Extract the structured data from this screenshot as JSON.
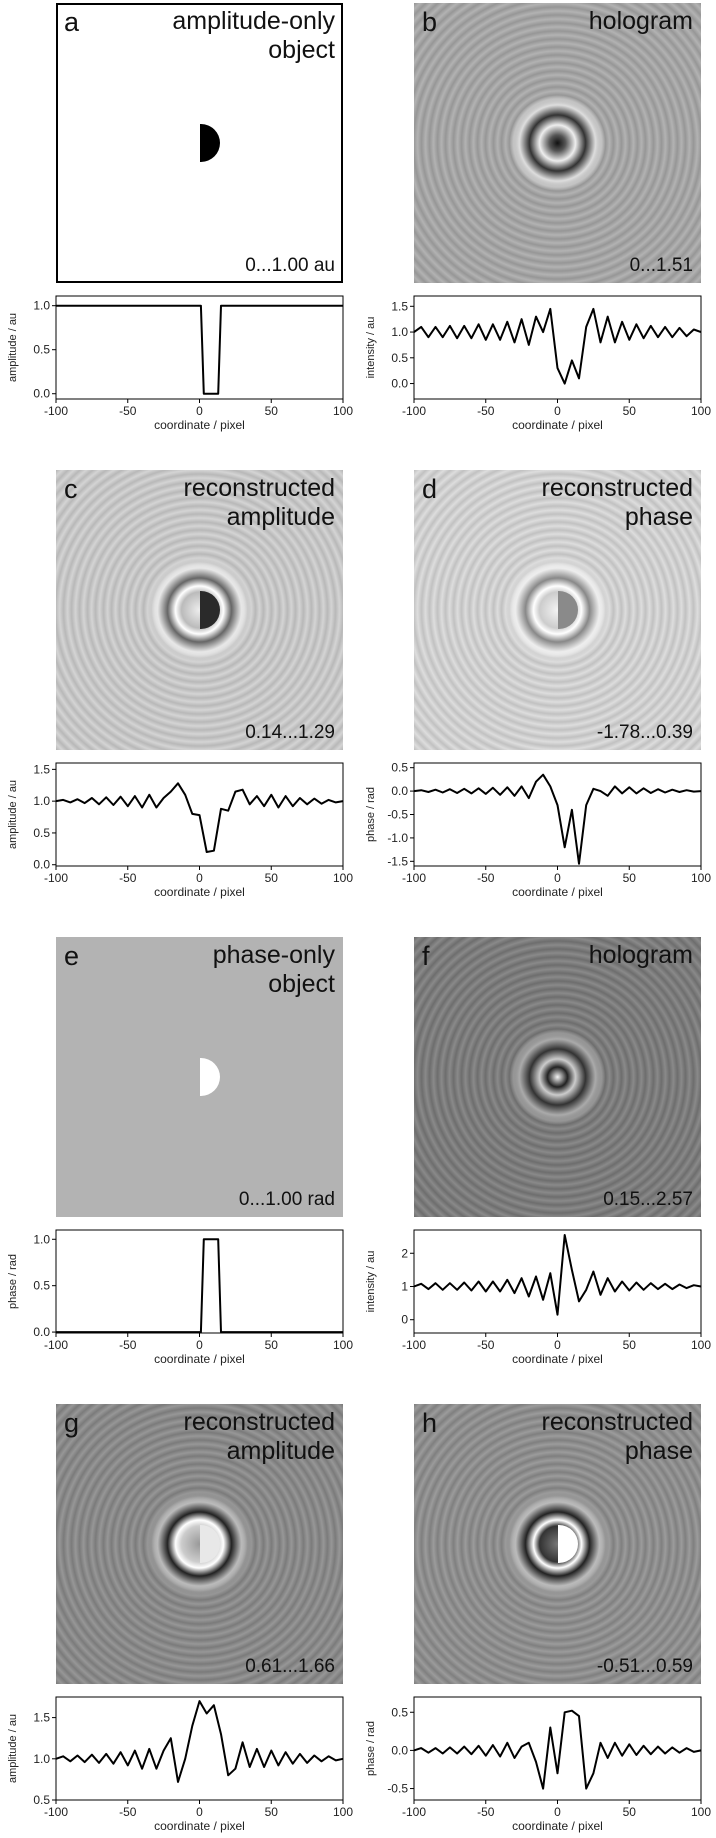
{
  "chart_data": [
    {
      "type": "line",
      "panel_label": "a",
      "title": [
        "amplitude-only",
        "object"
      ],
      "range_label": "0...1.00 au",
      "x": [
        -100,
        1,
        3,
        13,
        15,
        100
      ],
      "values": [
        1,
        1,
        0,
        0,
        1,
        1
      ],
      "color": "#000000",
      "xlim": [
        -100,
        100
      ],
      "xticks": [
        -100,
        -50,
        0,
        50,
        100
      ],
      "ylim": [
        -0.06,
        1.11
      ],
      "yticks": [
        {
          "value": 0,
          "label": "0.0"
        },
        0.5,
        {
          "value": 1,
          "label": "1.0"
        }
      ],
      "xlabel": "coordinate / pixel",
      "ylabel": "amplitude / au"
    },
    {
      "type": "line",
      "panel_label": "b",
      "title": [
        "hologram"
      ],
      "range_label": "0...1.51",
      "x": [
        -100,
        -95,
        -90,
        -85,
        -80,
        -75,
        -70,
        -65,
        -60,
        -55,
        -50,
        -45,
        -40,
        -35,
        -30,
        -25,
        -20,
        -15,
        -10,
        -5,
        0,
        5,
        10,
        15,
        20,
        25,
        30,
        35,
        40,
        45,
        50,
        55,
        60,
        65,
        70,
        75,
        80,
        85,
        90,
        95,
        100
      ],
      "values": [
        1.0,
        1.1,
        0.9,
        1.1,
        0.9,
        1.12,
        0.88,
        1.12,
        0.88,
        1.15,
        0.85,
        1.15,
        0.85,
        1.2,
        0.8,
        1.25,
        0.75,
        1.3,
        1.0,
        1.45,
        0.3,
        0.0,
        0.45,
        0.1,
        1.1,
        1.45,
        0.8,
        1.3,
        0.8,
        1.2,
        0.85,
        1.15,
        0.88,
        1.12,
        0.9,
        1.1,
        0.9,
        1.08,
        0.92,
        1.05,
        1.0
      ],
      "color": "#000000",
      "xlim": [
        -100,
        100
      ],
      "xticks": [
        -100,
        -50,
        0,
        50,
        100
      ],
      "ylim": [
        -0.3,
        1.7
      ],
      "yticks": [
        {
          "value": 0,
          "label": "0.0"
        },
        0.5,
        {
          "value": 1,
          "label": "1.0"
        },
        1.5
      ],
      "xlabel": "coordinate / pixel",
      "ylabel": "intensity / au"
    },
    {
      "type": "line",
      "panel_label": "c",
      "title": [
        "reconstructed",
        "amplitude"
      ],
      "range_label": "0.14...1.29",
      "x": [
        -100,
        -95,
        -90,
        -85,
        -80,
        -75,
        -70,
        -65,
        -60,
        -55,
        -50,
        -45,
        -40,
        -35,
        -30,
        -25,
        -20,
        -15,
        -10,
        -5,
        0,
        5,
        10,
        15,
        20,
        25,
        30,
        35,
        40,
        45,
        50,
        55,
        60,
        65,
        70,
        75,
        80,
        85,
        90,
        95,
        100
      ],
      "values": [
        1.0,
        1.02,
        0.98,
        1.03,
        0.97,
        1.05,
        0.95,
        1.06,
        0.94,
        1.07,
        0.92,
        1.08,
        0.9,
        1.1,
        0.9,
        1.05,
        1.15,
        1.28,
        1.1,
        0.8,
        0.78,
        0.2,
        0.22,
        0.88,
        0.85,
        1.15,
        1.18,
        0.95,
        1.08,
        0.92,
        1.1,
        0.9,
        1.08,
        0.92,
        1.05,
        0.95,
        1.04,
        0.96,
        1.02,
        0.98,
        1.0
      ],
      "color": "#000000",
      "xlim": [
        -100,
        100
      ],
      "xticks": [
        -100,
        -50,
        0,
        50,
        100
      ],
      "ylim": [
        -0.02,
        1.6
      ],
      "yticks": [
        {
          "value": 0,
          "label": "0.0"
        },
        0.5,
        {
          "value": 1,
          "label": "1.0"
        },
        1.5
      ],
      "xlabel": "coordinate / pixel",
      "ylabel": "amplitude / au"
    },
    {
      "type": "line",
      "panel_label": "d",
      "title": [
        "reconstructed",
        "phase"
      ],
      "range_label": "-1.78...0.39",
      "x": [
        -100,
        -95,
        -90,
        -85,
        -80,
        -75,
        -70,
        -65,
        -60,
        -55,
        -50,
        -45,
        -40,
        -35,
        -30,
        -25,
        -20,
        -15,
        -10,
        -5,
        0,
        5,
        10,
        15,
        20,
        25,
        30,
        35,
        40,
        45,
        50,
        55,
        60,
        65,
        70,
        75,
        80,
        85,
        90,
        95,
        100
      ],
      "values": [
        0,
        0.02,
        -0.02,
        0.03,
        -0.03,
        0.04,
        -0.04,
        0.05,
        -0.05,
        0.06,
        -0.06,
        0.07,
        -0.08,
        0.08,
        -0.1,
        0.1,
        -0.15,
        0.2,
        0.35,
        0.1,
        -0.3,
        -1.2,
        -0.4,
        -1.55,
        -0.3,
        0.05,
        0.0,
        -0.1,
        0.1,
        -0.05,
        0.08,
        -0.05,
        0.06,
        -0.04,
        0.04,
        -0.03,
        0.03,
        -0.02,
        0.02,
        -0.01,
        0
      ],
      "color": "#000000",
      "xlim": [
        -100,
        100
      ],
      "xticks": [
        -100,
        -50,
        0,
        50,
        100
      ],
      "ylim": [
        -1.6,
        0.6
      ],
      "yticks": [
        -1.5,
        {
          "value": -1,
          "label": "-1.0"
        },
        -0.5,
        {
          "value": 0,
          "label": "0.0"
        },
        0.5
      ],
      "xlabel": "coordinate / pixel",
      "ylabel": "phase / rad"
    },
    {
      "type": "line",
      "panel_label": "e",
      "title": [
        "phase-only",
        "object"
      ],
      "range_label": "0...1.00  rad",
      "x": [
        -100,
        1,
        3,
        13,
        15,
        100
      ],
      "values": [
        0,
        0,
        1,
        1,
        0,
        0
      ],
      "color": "#000000",
      "xlim": [
        -100,
        100
      ],
      "xticks": [
        -100,
        -50,
        0,
        50,
        100
      ],
      "ylim": [
        -0.01,
        1.1
      ],
      "yticks": [
        {
          "value": 0,
          "label": "0.0"
        },
        0.5,
        {
          "value": 1,
          "label": "1.0"
        }
      ],
      "xlabel": "coordinate / pixel",
      "ylabel": "phase / rad"
    },
    {
      "type": "line",
      "panel_label": "f",
      "title": [
        "hologram"
      ],
      "range_label": "0.15...2.57",
      "x": [
        -100,
        -95,
        -90,
        -85,
        -80,
        -75,
        -70,
        -65,
        -60,
        -55,
        -50,
        -45,
        -40,
        -35,
        -30,
        -25,
        -20,
        -15,
        -10,
        -5,
        0,
        5,
        10,
        15,
        20,
        25,
        30,
        35,
        40,
        45,
        50,
        55,
        60,
        65,
        70,
        75,
        80,
        85,
        90,
        95,
        100
      ],
      "values": [
        1,
        1.08,
        0.92,
        1.1,
        0.9,
        1.1,
        0.9,
        1.12,
        0.88,
        1.15,
        0.85,
        1.15,
        0.85,
        1.2,
        0.8,
        1.25,
        0.7,
        1.3,
        0.6,
        1.4,
        0.15,
        2.55,
        1.5,
        0.55,
        0.9,
        1.45,
        0.75,
        1.25,
        0.85,
        1.15,
        0.88,
        1.12,
        0.9,
        1.1,
        0.92,
        1.08,
        0.92,
        1.06,
        0.95,
        1.04,
        1
      ],
      "color": "#000000",
      "xlim": [
        -100,
        100
      ],
      "xticks": [
        -100,
        -50,
        0,
        50,
        100
      ],
      "ylim": [
        -0.4,
        2.7
      ],
      "yticks": [
        0,
        1,
        2
      ],
      "xlabel": "coordinate / pixel",
      "ylabel": "intensity / au"
    },
    {
      "type": "line",
      "panel_label": "g",
      "title": [
        "reconstructed",
        "amplitude"
      ],
      "range_label": "0.61...1.66",
      "x": [
        -100,
        -95,
        -90,
        -85,
        -80,
        -75,
        -70,
        -65,
        -60,
        -55,
        -50,
        -45,
        -40,
        -35,
        -30,
        -25,
        -20,
        -15,
        -10,
        -5,
        0,
        5,
        10,
        15,
        20,
        25,
        30,
        35,
        40,
        45,
        50,
        55,
        60,
        65,
        70,
        75,
        80,
        85,
        90,
        95,
        100
      ],
      "values": [
        1,
        1.03,
        0.97,
        1.04,
        0.96,
        1.05,
        0.95,
        1.06,
        0.94,
        1.08,
        0.92,
        1.1,
        0.88,
        1.12,
        0.88,
        1.1,
        1.25,
        0.72,
        1.0,
        1.4,
        1.7,
        1.55,
        1.65,
        1.3,
        0.8,
        0.88,
        1.2,
        0.9,
        1.12,
        0.9,
        1.1,
        0.92,
        1.08,
        0.94,
        1.06,
        0.95,
        1.04,
        0.97,
        1.03,
        0.98,
        1
      ],
      "color": "#000000",
      "xlim": [
        -100,
        100
      ],
      "xticks": [
        -100,
        -50,
        0,
        50,
        100
      ],
      "ylim": [
        0.5,
        1.75
      ],
      "yticks": [
        0.5,
        {
          "value": 1,
          "label": "1.0"
        },
        1.5
      ],
      "xlabel": "coordinate / pixel",
      "ylabel": "amplitude / au"
    },
    {
      "type": "line",
      "panel_label": "h",
      "title": [
        "reconstructed",
        "phase"
      ],
      "range_label": "-0.51...0.59",
      "x": [
        -100,
        -95,
        -90,
        -85,
        -80,
        -75,
        -70,
        -65,
        -60,
        -55,
        -50,
        -45,
        -40,
        -35,
        -30,
        -25,
        -20,
        -15,
        -10,
        -5,
        0,
        5,
        10,
        15,
        20,
        25,
        30,
        35,
        40,
        45,
        50,
        55,
        60,
        65,
        70,
        75,
        80,
        85,
        90,
        95,
        100
      ],
      "values": [
        0,
        0.03,
        -0.03,
        0.03,
        -0.04,
        0.04,
        -0.04,
        0.05,
        -0.05,
        0.06,
        -0.07,
        0.07,
        -0.08,
        0.1,
        -0.1,
        0.05,
        0.1,
        -0.15,
        -0.5,
        0.3,
        -0.3,
        0.5,
        0.52,
        0.45,
        -0.5,
        -0.3,
        0.1,
        -0.1,
        0.1,
        -0.07,
        0.08,
        -0.06,
        0.06,
        -0.05,
        0.05,
        -0.04,
        0.04,
        -0.03,
        0.03,
        -0.02,
        0
      ],
      "color": "#000000",
      "xlim": [
        -100,
        100
      ],
      "xticks": [
        -100,
        -50,
        0,
        50,
        100
      ],
      "ylim": [
        -0.65,
        0.7
      ],
      "yticks": [
        -0.5,
        {
          "value": 0,
          "label": "0.0"
        },
        0.5
      ],
      "xlabel": "coordinate / pixel",
      "ylabel": "phase / rad"
    }
  ]
}
